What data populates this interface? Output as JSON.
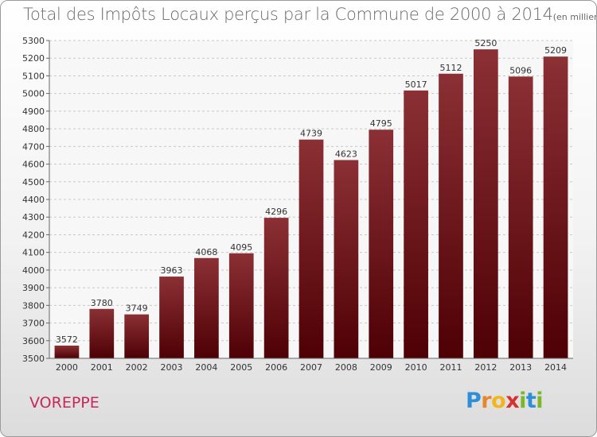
{
  "title": "Total des Impôts Locaux perçus par la Commune de 2000 à 2014",
  "title_unit": "(en milliers d'€)",
  "commune": "VOREPPE",
  "logo": {
    "letters": [
      "P",
      "r",
      "o",
      "x",
      "i",
      "t",
      "i"
    ],
    "colors": [
      "#2e8fd6",
      "#e8862a",
      "#f2b51c",
      "#d8322e",
      "#7ab829",
      "#2e8fd6",
      "#7ab829"
    ]
  },
  "colors": {
    "bar_top": "#8b3035",
    "bar_bottom": "#4e0004",
    "grid": "#c8c8c8",
    "axis_text": "#333333"
  },
  "chart_data": {
    "type": "bar",
    "title": "Total des Impôts Locaux perçus par la Commune de 2000 à 2014",
    "xlabel": "",
    "ylabel": "",
    "categories": [
      "2000",
      "2001",
      "2002",
      "2003",
      "2004",
      "2005",
      "2006",
      "2007",
      "2008",
      "2009",
      "2010",
      "2011",
      "2012",
      "2013",
      "2014"
    ],
    "values": [
      3572,
      3780,
      3749,
      3963,
      4068,
      4095,
      4296,
      4739,
      4623,
      4795,
      5017,
      5112,
      5250,
      5096,
      5209
    ],
    "ylim": [
      3500,
      5300
    ],
    "yticks": [
      3500,
      3600,
      3700,
      3800,
      3900,
      4000,
      4100,
      4200,
      4300,
      4400,
      4500,
      4600,
      4700,
      4800,
      4900,
      5000,
      5100,
      5200,
      5300
    ],
    "grid": true
  }
}
